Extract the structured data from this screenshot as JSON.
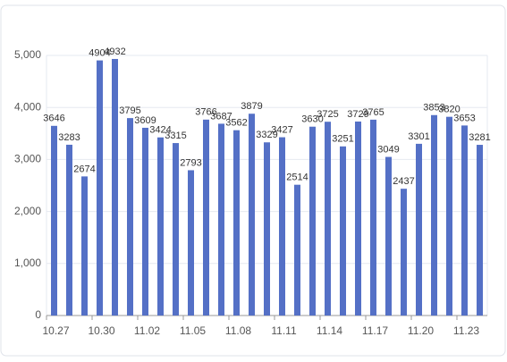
{
  "chart_data": {
    "type": "bar",
    "categories": [
      "10.27",
      null,
      null,
      "10.30",
      null,
      null,
      "11.02",
      null,
      null,
      "11.05",
      null,
      null,
      "11.08",
      null,
      null,
      "11.11",
      null,
      null,
      "11.14",
      null,
      null,
      "11.17",
      null,
      null,
      "11.20",
      null,
      null,
      "11.23",
      null
    ],
    "values": [
      3646,
      3283,
      2674,
      4904,
      4932,
      3795,
      3609,
      3424,
      3315,
      2793,
      3766,
      3687,
      3562,
      3879,
      3329,
      3427,
      2514,
      3630,
      3725,
      3251,
      3729,
      3765,
      3049,
      2437,
      3301,
      3853,
      3820,
      3653,
      3281
    ],
    "color": "#5470c6",
    "ylim": [
      0,
      5000
    ],
    "yticks": [
      0,
      {
        "value": 1000,
        "label": "1,000"
      },
      {
        "value": 2000,
        "label": "2,000"
      },
      {
        "value": 3000,
        "label": "3,000"
      },
      {
        "value": 4000,
        "label": "4,000"
      },
      {
        "value": 5000,
        "label": "5,000"
      }
    ],
    "grid": true
  }
}
